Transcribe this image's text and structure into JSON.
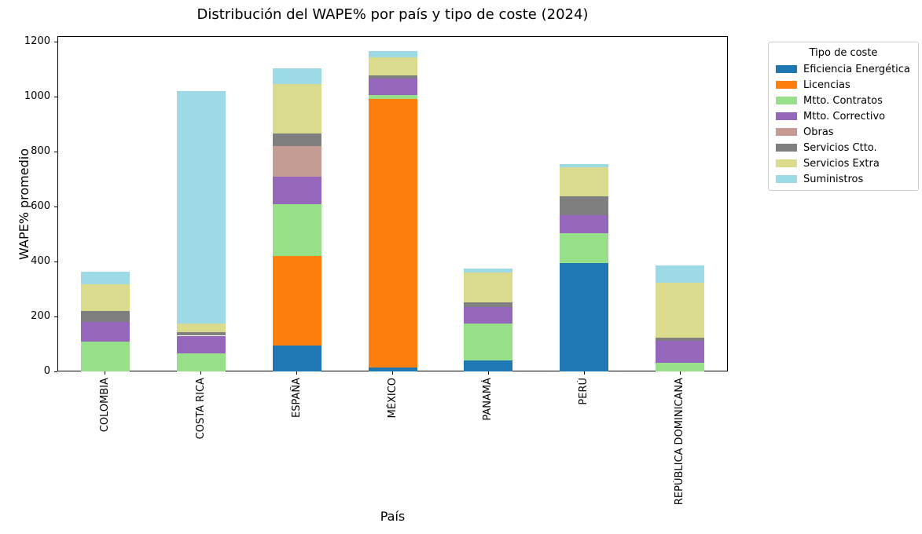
{
  "title": "Distribución del WAPE% por país y tipo de coste (2024)",
  "chart_data": {
    "type": "bar",
    "stacked": true,
    "title": "Distribución del WAPE% por país y tipo de coste (2024)",
    "xlabel": "País",
    "ylabel": "WAPE% promedio",
    "ylim": [
      0,
      1220
    ],
    "yticks": [
      0,
      200,
      400,
      600,
      800,
      1000,
      1200
    ],
    "grid": false,
    "categories": [
      "COLOMBIA",
      "COSTA RICA",
      "ESPAÑA",
      "MÉXICO",
      "PANAMÁ",
      "PERÚ",
      "REPÚBLICA DOMINICANA"
    ],
    "legend_title": "Tipo de coste",
    "legend_position": "outside upper right",
    "series": [
      {
        "name": "Eficiencia Energética",
        "color": "#1f77b4",
        "values": [
          0,
          0,
          95,
          13,
          40,
          395,
          0
        ]
      },
      {
        "name": "Licencias",
        "color": "#ff7f0e",
        "values": [
          0,
          0,
          325,
          979,
          0,
          0,
          0
        ]
      },
      {
        "name": "Mtto. Contratos",
        "color": "#98df8a",
        "values": [
          110,
          67,
          188,
          14,
          135,
          109,
          31
        ]
      },
      {
        "name": "Mtto. Correctivo",
        "color": "#9467bd",
        "values": [
          70,
          63,
          100,
          59,
          60,
          64,
          81
        ]
      },
      {
        "name": "Obras",
        "color": "#c49c94",
        "values": [
          0,
          0,
          112,
          0,
          0,
          0,
          0
        ]
      },
      {
        "name": "Servicios Ctto.",
        "color": "#7f7f7f",
        "values": [
          39,
          14,
          47,
          13,
          16,
          68,
          12
        ]
      },
      {
        "name": "Servicios Extra",
        "color": "#dbdb8d",
        "values": [
          98,
          29,
          180,
          65,
          110,
          108,
          198
        ]
      },
      {
        "name": "Suministros",
        "color": "#9edae5",
        "values": [
          47,
          848,
          55,
          24,
          14,
          11,
          63
        ]
      }
    ],
    "totals": [
      364,
      1021,
      1102,
      1167,
      375,
      755,
      385
    ]
  }
}
